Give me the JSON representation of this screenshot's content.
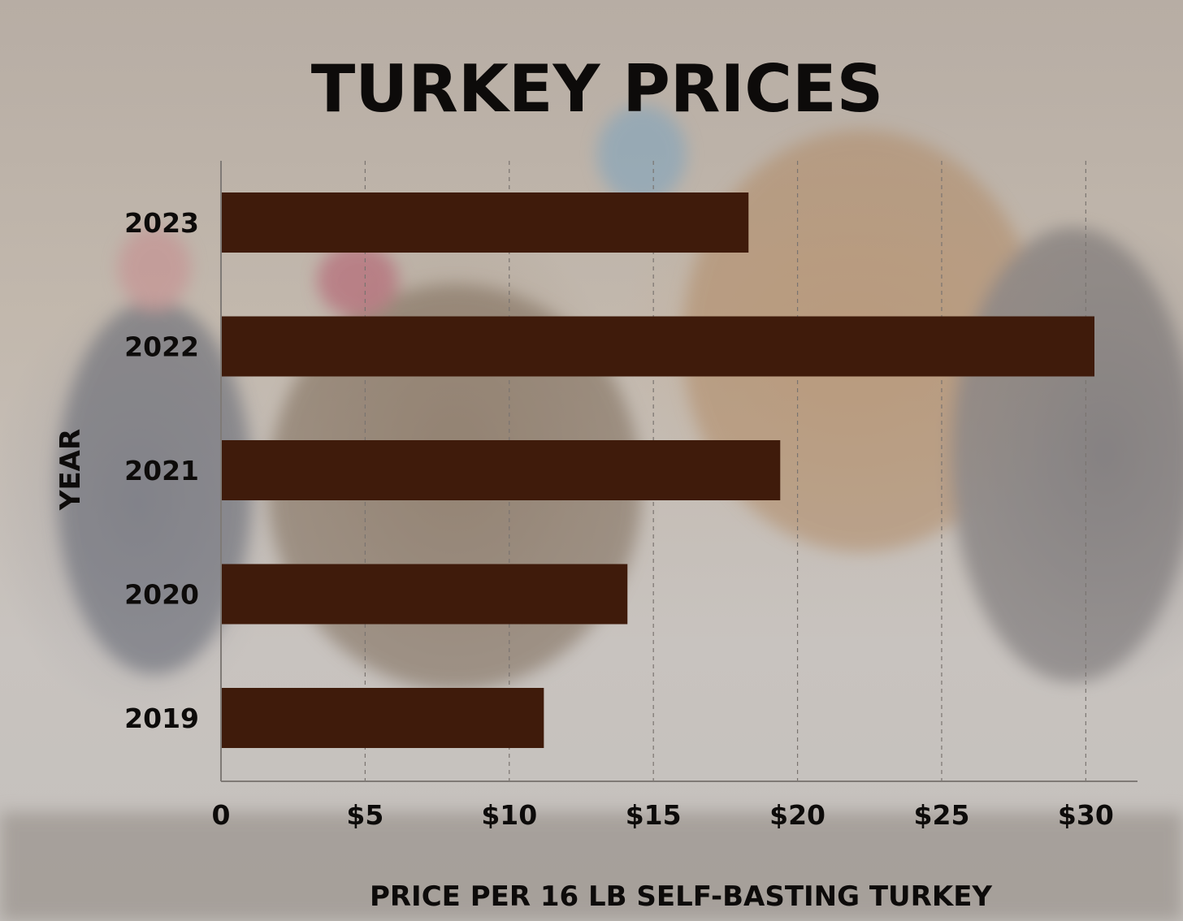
{
  "chart_data": {
    "type": "bar",
    "orientation": "horizontal",
    "title": "TURKEY PRICES",
    "xlabel": "PRICE PER 16 LB SELF-BASTING TURKEY",
    "ylabel": "YEAR",
    "categories": [
      "2023",
      "2022",
      "2021",
      "2020",
      "2019"
    ],
    "values": [
      18.3,
      30.3,
      19.4,
      14.1,
      11.2
    ],
    "xlim": [
      0,
      32
    ],
    "xticks": [
      {
        "value": 0,
        "label": "0"
      },
      {
        "value": 5,
        "label": "$5"
      },
      {
        "value": 10,
        "label": "$10"
      },
      {
        "value": 15,
        "label": "$15"
      },
      {
        "value": 20,
        "label": "$20"
      },
      {
        "value": 25,
        "label": "$25"
      },
      {
        "value": 30,
        "label": "$30"
      }
    ],
    "grid": "vertical dashed",
    "legend": "none",
    "colors": {
      "bar": "#3f1b0b",
      "text": "#0d0b0a",
      "grid": "#7a7470",
      "axis": "#7f7a76"
    }
  }
}
